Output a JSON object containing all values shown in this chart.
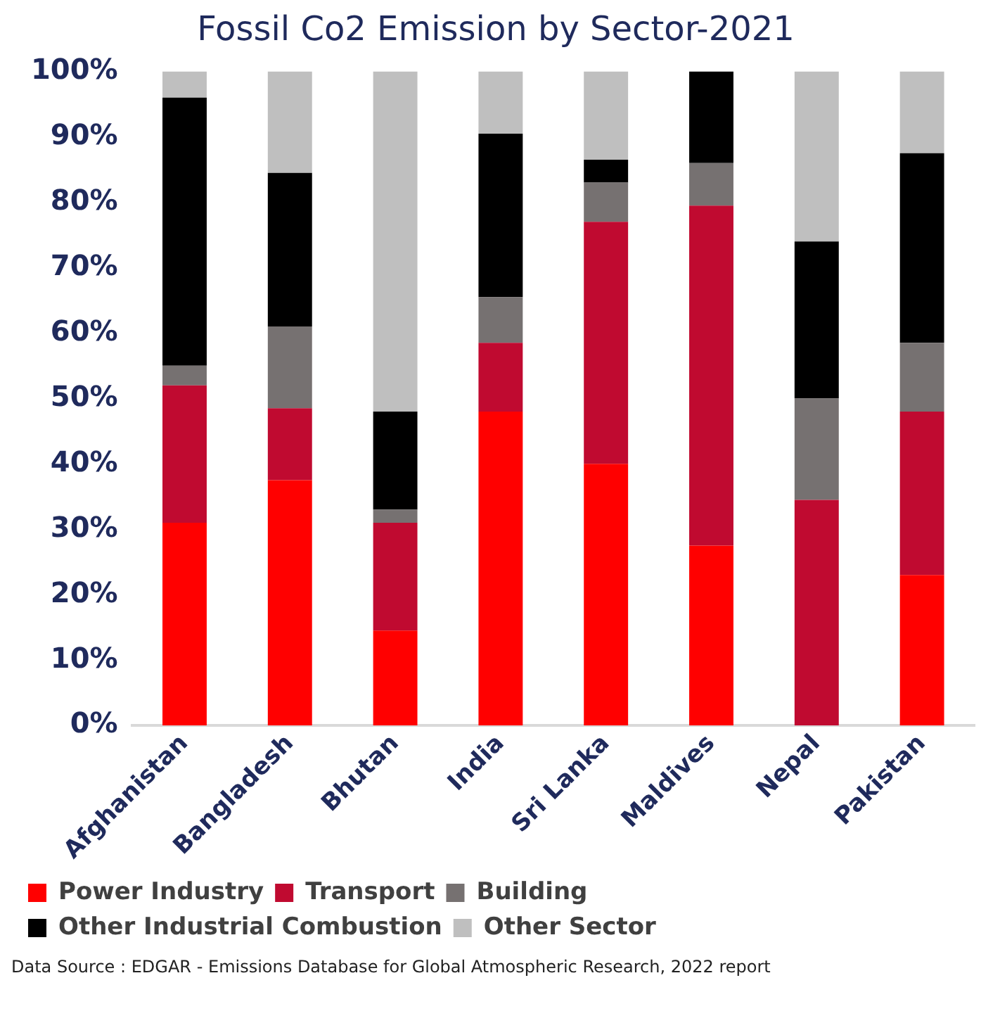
{
  "chart_data": {
    "type": "bar",
    "title": "Fossil Co2 Emission by Sector-2021",
    "categories": [
      "Afghanistan",
      "Bangladesh",
      "Bhutan",
      "India",
      "Sri Lanka",
      "Maldives",
      "Nepal",
      "Pakistan"
    ],
    "series": [
      {
        "name": "Power Industry",
        "color": "#ff0000",
        "values": [
          31,
          37.5,
          14.5,
          48,
          40,
          27.5,
          0,
          23
        ]
      },
      {
        "name": "Transport",
        "color": "#c00a30",
        "values": [
          21,
          11,
          16.5,
          10.5,
          37,
          52,
          34.5,
          25
        ]
      },
      {
        "name": "Building",
        "color": "#767171",
        "values": [
          3,
          12.5,
          2,
          7,
          6,
          6.5,
          15.5,
          10.5
        ]
      },
      {
        "name": "Other Industrial Combustion",
        "color": "#000000",
        "values": [
          41,
          23.5,
          15,
          25,
          3.5,
          14,
          24,
          29
        ]
      },
      {
        "name": "Other Sector",
        "color": "#bfbfbf",
        "values": [
          4,
          15.5,
          52,
          9.5,
          13.5,
          0,
          26,
          12.5
        ]
      }
    ],
    "stacked": true,
    "ylim": [
      0,
      100
    ],
    "yticks": [
      {
        "value": 0,
        "label": "0%"
      },
      {
        "value": 10,
        "label": "10%"
      },
      {
        "value": 20,
        "label": "20%"
      },
      {
        "value": 30,
        "label": "30%"
      },
      {
        "value": 40,
        "label": "40%"
      },
      {
        "value": 50,
        "label": "50%"
      },
      {
        "value": 60,
        "label": "60%"
      },
      {
        "value": 70,
        "label": "70%"
      },
      {
        "value": 80,
        "label": "80%"
      },
      {
        "value": 90,
        "label": "90%"
      },
      {
        "value": 100,
        "label": "100%"
      }
    ],
    "grid": false,
    "legend": "bottom",
    "annotations": [
      "Data Source : EDGAR - Emissions Database for Global Atmospheric Research, 2022 report"
    ]
  }
}
